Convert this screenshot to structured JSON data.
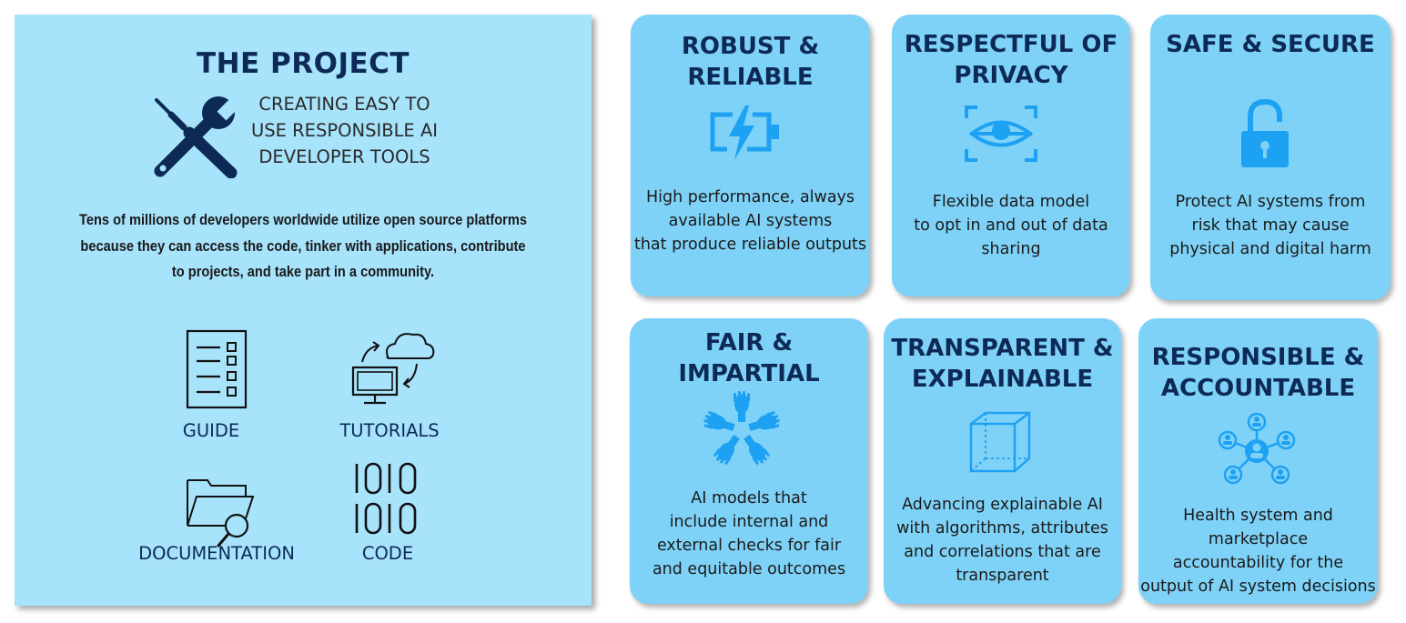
{
  "project": {
    "title": "THE PROJECT",
    "tagline": "CREATING EASY TO\nUSE RESPONSIBLE AI\nDEVELOPER TOOLS",
    "description": "Tens of millions of developers worldwide utilize open source platforms because they can access the code, tinker with applications, contribute to projects, and take part in a community.",
    "tools_icon": "wrench-screwdriver-icon",
    "resources": [
      {
        "label": "GUIDE",
        "icon": "checklist-icon"
      },
      {
        "label": "TUTORIALS",
        "icon": "cloud-sync-computer-icon"
      },
      {
        "label": "DOCUMENTATION",
        "icon": "folder-search-icon"
      },
      {
        "label": "CODE",
        "icon": "binary-code-icon"
      }
    ]
  },
  "principles": [
    {
      "title": "ROBUST &\nRELIABLE",
      "description": "High performance, always\navailable AI systems\nthat produce reliable outputs",
      "icon": "battery-charging-icon"
    },
    {
      "title": "RESPECTFUL OF\nPRIVACY",
      "description": "Flexible data model\nto opt in and out of data\nsharing",
      "icon": "eye-scan-icon"
    },
    {
      "title": "SAFE & SECURE",
      "description": "Protect AI systems from\nrisk that may cause\nphysical and digital harm",
      "icon": "unlocked-padlock-icon"
    },
    {
      "title": "FAIR &\nIMPARTIAL",
      "description": "AI models that\ninclude internal and\nexternal checks  for fair\nand equitable outcomes",
      "icon": "hands-together-icon"
    },
    {
      "title": "TRANSPARENT &\nEXPLAINABLE",
      "description": "Advancing explainable AI\nwith algorithms, attributes\nand correlations that are\ntransparent",
      "icon": "transparent-cube-icon"
    },
    {
      "title": "RESPONSIBLE &\nACCOUNTABLE",
      "description": "Health system and\nmarketplace\naccountability for the\noutput of AI system decisions",
      "icon": "people-network-icon"
    }
  ],
  "colors": {
    "panel_bg": "#a7e3fb",
    "card_bg": "#7fd2f7",
    "title_navy": "#0d2a57",
    "icon_blue": "#1da1f2"
  }
}
